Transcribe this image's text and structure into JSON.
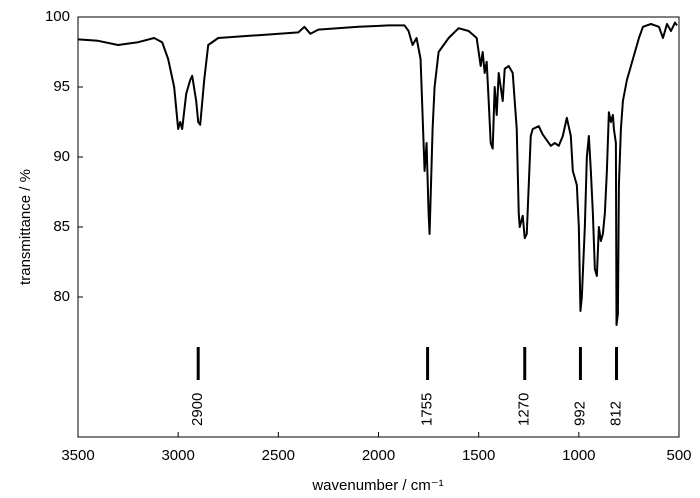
{
  "chart_data": {
    "type": "line",
    "xlabel": "wavenumber / cm⁻¹",
    "ylabel": "transmittance / %",
    "xlim": [
      3500,
      500
    ],
    "ylim": [
      70,
      100
    ],
    "xticks": [
      3500,
      3000,
      2500,
      2000,
      1500,
      1000,
      500
    ],
    "yticks": [
      80,
      85,
      90,
      95,
      100
    ],
    "grid": false,
    "color": "#000000",
    "peaks": [
      2900,
      1755,
      1270,
      992,
      812
    ],
    "x": [
      3500,
      3400,
      3300,
      3200,
      3120,
      3080,
      3050,
      3020,
      3000,
      2990,
      2980,
      2960,
      2940,
      2930,
      2910,
      2900,
      2890,
      2870,
      2850,
      2800,
      2600,
      2400,
      2370,
      2340,
      2300,
      2100,
      1950,
      1870,
      1850,
      1830,
      1810,
      1790,
      1780,
      1770,
      1760,
      1750,
      1745,
      1740,
      1730,
      1720,
      1700,
      1650,
      1600,
      1550,
      1510,
      1490,
      1480,
      1470,
      1460,
      1450,
      1440,
      1430,
      1420,
      1410,
      1400,
      1380,
      1370,
      1350,
      1330,
      1310,
      1300,
      1295,
      1280,
      1270,
      1260,
      1250,
      1240,
      1230,
      1200,
      1180,
      1160,
      1140,
      1120,
      1100,
      1080,
      1060,
      1040,
      1030,
      1010,
      1000,
      992,
      985,
      970,
      960,
      950,
      940,
      930,
      920,
      910,
      900,
      890,
      880,
      870,
      860,
      850,
      840,
      830,
      825,
      815,
      812,
      805,
      800,
      790,
      780,
      760,
      740,
      720,
      700,
      680,
      640,
      600,
      580,
      560,
      540,
      520,
      510
    ],
    "values": [
      98.4,
      98.3,
      98.0,
      98.2,
      98.5,
      98.2,
      97.0,
      95.0,
      92.0,
      92.5,
      92.0,
      94.5,
      95.5,
      95.8,
      94.0,
      92.5,
      92.3,
      95.5,
      98.0,
      98.5,
      98.7,
      98.9,
      99.3,
      98.8,
      99.1,
      99.3,
      99.4,
      99.4,
      99.0,
      98.0,
      98.5,
      97.0,
      93,
      89,
      91,
      86,
      84.5,
      87,
      92,
      95,
      97.5,
      98.5,
      99.2,
      99.0,
      98.5,
      96.5,
      97.5,
      96,
      96.8,
      94,
      91,
      90.6,
      95,
      93,
      96,
      94,
      96.3,
      96.5,
      96,
      92,
      86,
      85,
      85.8,
      84.2,
      84.5,
      88,
      91.5,
      92,
      92.2,
      91.6,
      91.2,
      90.8,
      91,
      90.8,
      91.5,
      92.8,
      91.5,
      89,
      88,
      85,
      79,
      80,
      85,
      90,
      91.5,
      89,
      86,
      82,
      81.5,
      85,
      84,
      84.5,
      86,
      89,
      93.2,
      92.5,
      93,
      92,
      91,
      78,
      78.8,
      88,
      92,
      94,
      95.5,
      96.5,
      97.5,
      98.5,
      99.3,
      99.5,
      99.3,
      98.5,
      99.5,
      99.0,
      99.6,
      99.4
    ]
  }
}
